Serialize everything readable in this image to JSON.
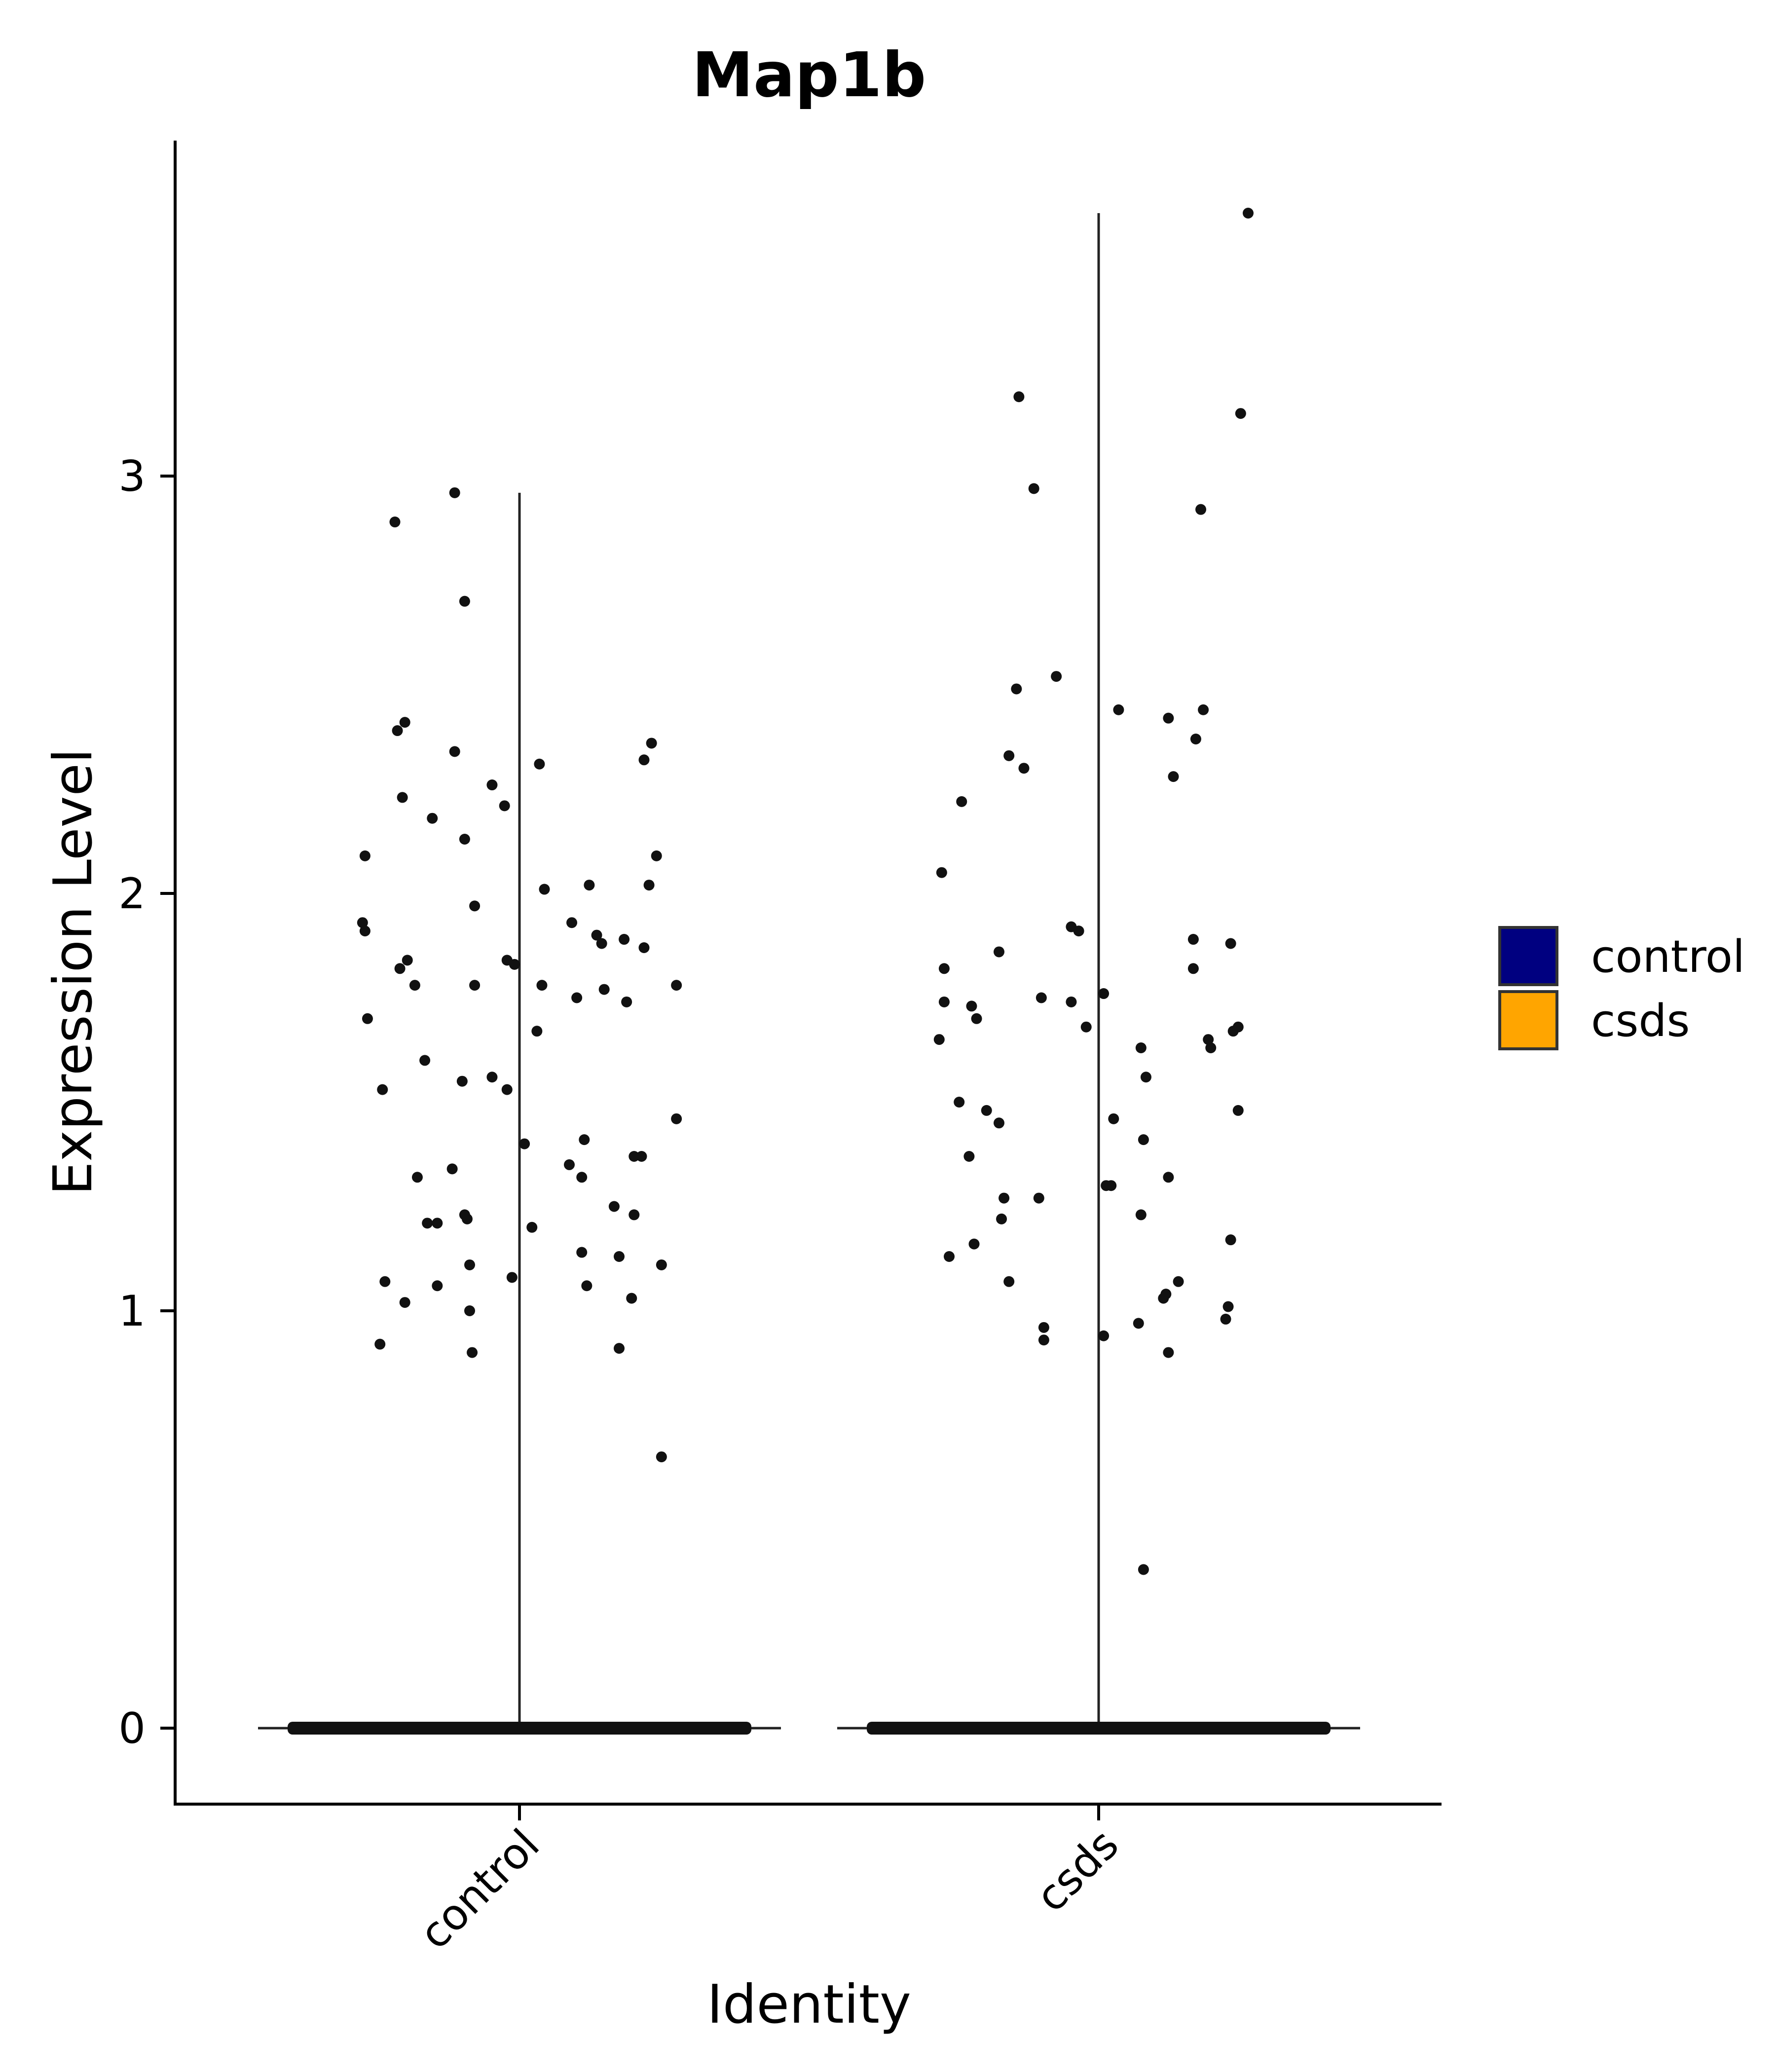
{
  "chart_data": {
    "type": "violin",
    "title": "Map1b",
    "xlabel": "Identity",
    "ylabel": "Expression Level",
    "categories": [
      "control",
      "csds"
    ],
    "yticks": [
      0,
      1,
      2,
      3
    ],
    "ylim": [
      -0.18,
      3.82
    ],
    "legend": {
      "position": "right",
      "entries": [
        {
          "label": "control",
          "color": "#000080"
        },
        {
          "label": "csds",
          "color": "#FFA500"
        }
      ]
    },
    "violins": [
      {
        "category": "control",
        "min": 0,
        "max": 2.96,
        "zero_fraction": "majority"
      },
      {
        "category": "csds",
        "min": 0,
        "max": 3.63,
        "zero_fraction": "majority"
      }
    ],
    "points": {
      "control": [
        {
          "x": -0.62,
          "y": 2.09
        },
        {
          "x": -0.63,
          "y": 1.93
        },
        {
          "x": -0.62,
          "y": 1.91
        },
        {
          "x": -0.61,
          "y": 1.7
        },
        {
          "x": -0.56,
          "y": 0.92
        },
        {
          "x": -0.54,
          "y": 1.07
        },
        {
          "x": -0.55,
          "y": 1.53
        },
        {
          "x": -0.5,
          "y": 2.89
        },
        {
          "x": -0.49,
          "y": 2.39
        },
        {
          "x": -0.46,
          "y": 2.41
        },
        {
          "x": -0.47,
          "y": 2.23
        },
        {
          "x": -0.48,
          "y": 1.82
        },
        {
          "x": -0.45,
          "y": 1.84
        },
        {
          "x": -0.42,
          "y": 1.78
        },
        {
          "x": -0.46,
          "y": 1.02
        },
        {
          "x": -0.41,
          "y": 1.32
        },
        {
          "x": -0.38,
          "y": 1.6
        },
        {
          "x": -0.37,
          "y": 1.21
        },
        {
          "x": -0.33,
          "y": 1.21
        },
        {
          "x": -0.35,
          "y": 2.18
        },
        {
          "x": -0.33,
          "y": 1.06
        },
        {
          "x": -0.26,
          "y": 2.96
        },
        {
          "x": -0.26,
          "y": 2.34
        },
        {
          "x": -0.27,
          "y": 1.34
        },
        {
          "x": -0.22,
          "y": 2.7
        },
        {
          "x": -0.22,
          "y": 2.13
        },
        {
          "x": -0.23,
          "y": 1.55
        },
        {
          "x": -0.22,
          "y": 1.23
        },
        {
          "x": -0.21,
          "y": 1.22
        },
        {
          "x": -0.2,
          "y": 1.0
        },
        {
          "x": -0.2,
          "y": 1.11
        },
        {
          "x": -0.19,
          "y": 0.9
        },
        {
          "x": -0.18,
          "y": 1.97
        },
        {
          "x": -0.18,
          "y": 1.78
        },
        {
          "x": -0.11,
          "y": 2.26
        },
        {
          "x": -0.11,
          "y": 1.56
        },
        {
          "x": -0.06,
          "y": 2.21
        },
        {
          "x": -0.05,
          "y": 1.84
        },
        {
          "x": -0.05,
          "y": 1.53
        },
        {
          "x": -0.02,
          "y": 1.83
        },
        {
          "x": -0.03,
          "y": 1.08
        },
        {
          "x": 0.02,
          "y": 1.4
        },
        {
          "x": 0.05,
          "y": 1.2
        },
        {
          "x": 0.08,
          "y": 2.31
        },
        {
          "x": 0.09,
          "y": 1.78
        },
        {
          "x": 0.07,
          "y": 1.67
        },
        {
          "x": 0.1,
          "y": 2.01
        },
        {
          "x": 0.2,
          "y": 1.35
        },
        {
          "x": 0.21,
          "y": 1.93
        },
        {
          "x": 0.23,
          "y": 1.75
        },
        {
          "x": 0.26,
          "y": 1.41
        },
        {
          "x": 0.25,
          "y": 1.32
        },
        {
          "x": 0.25,
          "y": 1.14
        },
        {
          "x": 0.28,
          "y": 2.02
        },
        {
          "x": 0.27,
          "y": 1.06
        },
        {
          "x": 0.31,
          "y": 1.9
        },
        {
          "x": 0.33,
          "y": 1.88
        },
        {
          "x": 0.34,
          "y": 1.77
        },
        {
          "x": 0.38,
          "y": 1.25
        },
        {
          "x": 0.4,
          "y": 1.13
        },
        {
          "x": 0.4,
          "y": 0.91
        },
        {
          "x": 0.42,
          "y": 1.89
        },
        {
          "x": 0.43,
          "y": 1.74
        },
        {
          "x": 0.45,
          "y": 1.03
        },
        {
          "x": 0.46,
          "y": 1.23
        },
        {
          "x": 0.46,
          "y": 1.37
        },
        {
          "x": 0.49,
          "y": 1.37
        },
        {
          "x": 0.5,
          "y": 2.32
        },
        {
          "x": 0.5,
          "y": 1.87
        },
        {
          "x": 0.52,
          "y": 2.02
        },
        {
          "x": 0.53,
          "y": 2.36
        },
        {
          "x": 0.55,
          "y": 2.09
        },
        {
          "x": 0.57,
          "y": 1.11
        },
        {
          "x": 0.57,
          "y": 0.65
        },
        {
          "x": 0.63,
          "y": 1.78
        },
        {
          "x": 0.63,
          "y": 1.46
        }
      ],
      "csds": [
        {
          "x": -0.63,
          "y": 2.05
        },
        {
          "x": -0.62,
          "y": 1.82
        },
        {
          "x": -0.62,
          "y": 1.74
        },
        {
          "x": -0.64,
          "y": 1.65
        },
        {
          "x": -0.6,
          "y": 1.13
        },
        {
          "x": -0.55,
          "y": 2.22
        },
        {
          "x": -0.56,
          "y": 1.5
        },
        {
          "x": -0.51,
          "y": 1.73
        },
        {
          "x": -0.49,
          "y": 1.7
        },
        {
          "x": -0.52,
          "y": 1.37
        },
        {
          "x": -0.5,
          "y": 1.16
        },
        {
          "x": -0.45,
          "y": 1.48
        },
        {
          "x": -0.4,
          "y": 1.45
        },
        {
          "x": -0.4,
          "y": 1.86
        },
        {
          "x": -0.38,
          "y": 1.27
        },
        {
          "x": -0.39,
          "y": 1.22
        },
        {
          "x": -0.36,
          "y": 1.07
        },
        {
          "x": -0.36,
          "y": 2.33
        },
        {
          "x": -0.33,
          "y": 2.49
        },
        {
          "x": -0.32,
          "y": 3.19
        },
        {
          "x": -0.3,
          "y": 2.3
        },
        {
          "x": -0.26,
          "y": 2.97
        },
        {
          "x": -0.23,
          "y": 1.75
        },
        {
          "x": -0.24,
          "y": 1.27
        },
        {
          "x": -0.22,
          "y": 0.96
        },
        {
          "x": -0.22,
          "y": 0.93
        },
        {
          "x": -0.17,
          "y": 2.52
        },
        {
          "x": -0.11,
          "y": 1.92
        },
        {
          "x": -0.11,
          "y": 1.74
        },
        {
          "x": -0.08,
          "y": 1.91
        },
        {
          "x": -0.05,
          "y": 1.68
        },
        {
          "x": 0.02,
          "y": 1.76
        },
        {
          "x": 0.02,
          "y": 0.94
        },
        {
          "x": 0.03,
          "y": 1.3
        },
        {
          "x": 0.05,
          "y": 1.3
        },
        {
          "x": 0.06,
          "y": 1.46
        },
        {
          "x": 0.08,
          "y": 2.44
        },
        {
          "x": 0.16,
          "y": 0.97
        },
        {
          "x": 0.17,
          "y": 1.23
        },
        {
          "x": 0.17,
          "y": 1.63
        },
        {
          "x": 0.18,
          "y": 1.41
        },
        {
          "x": 0.19,
          "y": 1.56
        },
        {
          "x": 0.18,
          "y": 0.38
        },
        {
          "x": 0.26,
          "y": 1.03
        },
        {
          "x": 0.27,
          "y": 1.04
        },
        {
          "x": 0.28,
          "y": 0.9
        },
        {
          "x": 0.28,
          "y": 1.32
        },
        {
          "x": 0.28,
          "y": 2.42
        },
        {
          "x": 0.3,
          "y": 2.28
        },
        {
          "x": 0.32,
          "y": 1.07
        },
        {
          "x": 0.38,
          "y": 1.89
        },
        {
          "x": 0.38,
          "y": 1.82
        },
        {
          "x": 0.39,
          "y": 2.37
        },
        {
          "x": 0.41,
          "y": 2.92
        },
        {
          "x": 0.42,
          "y": 2.44
        },
        {
          "x": 0.44,
          "y": 1.65
        },
        {
          "x": 0.45,
          "y": 1.63
        },
        {
          "x": 0.51,
          "y": 0.98
        },
        {
          "x": 0.52,
          "y": 1.01
        },
        {
          "x": 0.53,
          "y": 1.17
        },
        {
          "x": 0.53,
          "y": 1.88
        },
        {
          "x": 0.54,
          "y": 1.67
        },
        {
          "x": 0.56,
          "y": 1.68
        },
        {
          "x": 0.56,
          "y": 1.48
        },
        {
          "x": 0.57,
          "y": 3.15
        },
        {
          "x": 0.6,
          "y": 3.63
        }
      ]
    }
  }
}
